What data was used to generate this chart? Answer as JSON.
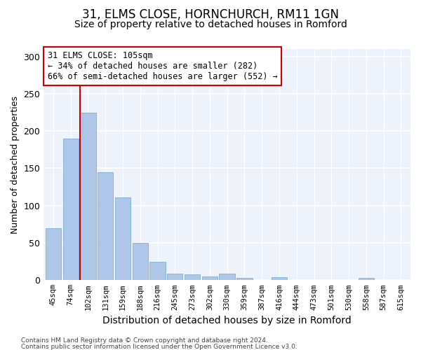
{
  "title1": "31, ELMS CLOSE, HORNCHURCH, RM11 1GN",
  "title2": "Size of property relative to detached houses in Romford",
  "xlabel": "Distribution of detached houses by size in Romford",
  "ylabel": "Number of detached properties",
  "categories": [
    "45sqm",
    "74sqm",
    "102sqm",
    "131sqm",
    "159sqm",
    "188sqm",
    "216sqm",
    "245sqm",
    "273sqm",
    "302sqm",
    "330sqm",
    "359sqm",
    "387sqm",
    "416sqm",
    "444sqm",
    "473sqm",
    "501sqm",
    "530sqm",
    "558sqm",
    "587sqm",
    "615sqm"
  ],
  "values": [
    70,
    190,
    225,
    145,
    111,
    50,
    25,
    9,
    8,
    5,
    9,
    3,
    0,
    4,
    0,
    0,
    0,
    0,
    3,
    0,
    0
  ],
  "bar_color": "#aec6e8",
  "bar_edge_color": "#7bafd4",
  "property_line_bar_idx": 2,
  "annotation_text": "31 ELMS CLOSE: 105sqm\n← 34% of detached houses are smaller (282)\n66% of semi-detached houses are larger (552) →",
  "annotation_box_color": "#ffffff",
  "annotation_box_edge": "#cc0000",
  "line_color": "#cc0000",
  "ylim": [
    0,
    310
  ],
  "yticks": [
    0,
    50,
    100,
    150,
    200,
    250,
    300
  ],
  "footer1": "Contains HM Land Registry data © Crown copyright and database right 2024.",
  "footer2": "Contains public sector information licensed under the Open Government Licence v3.0.",
  "bg_color": "#eef2fb",
  "grid_color": "#ffffff",
  "title1_fontsize": 12,
  "title2_fontsize": 10,
  "xlabel_fontsize": 10,
  "ylabel_fontsize": 9,
  "annotation_fontsize": 8.5,
  "tick_fontsize": 7.5
}
